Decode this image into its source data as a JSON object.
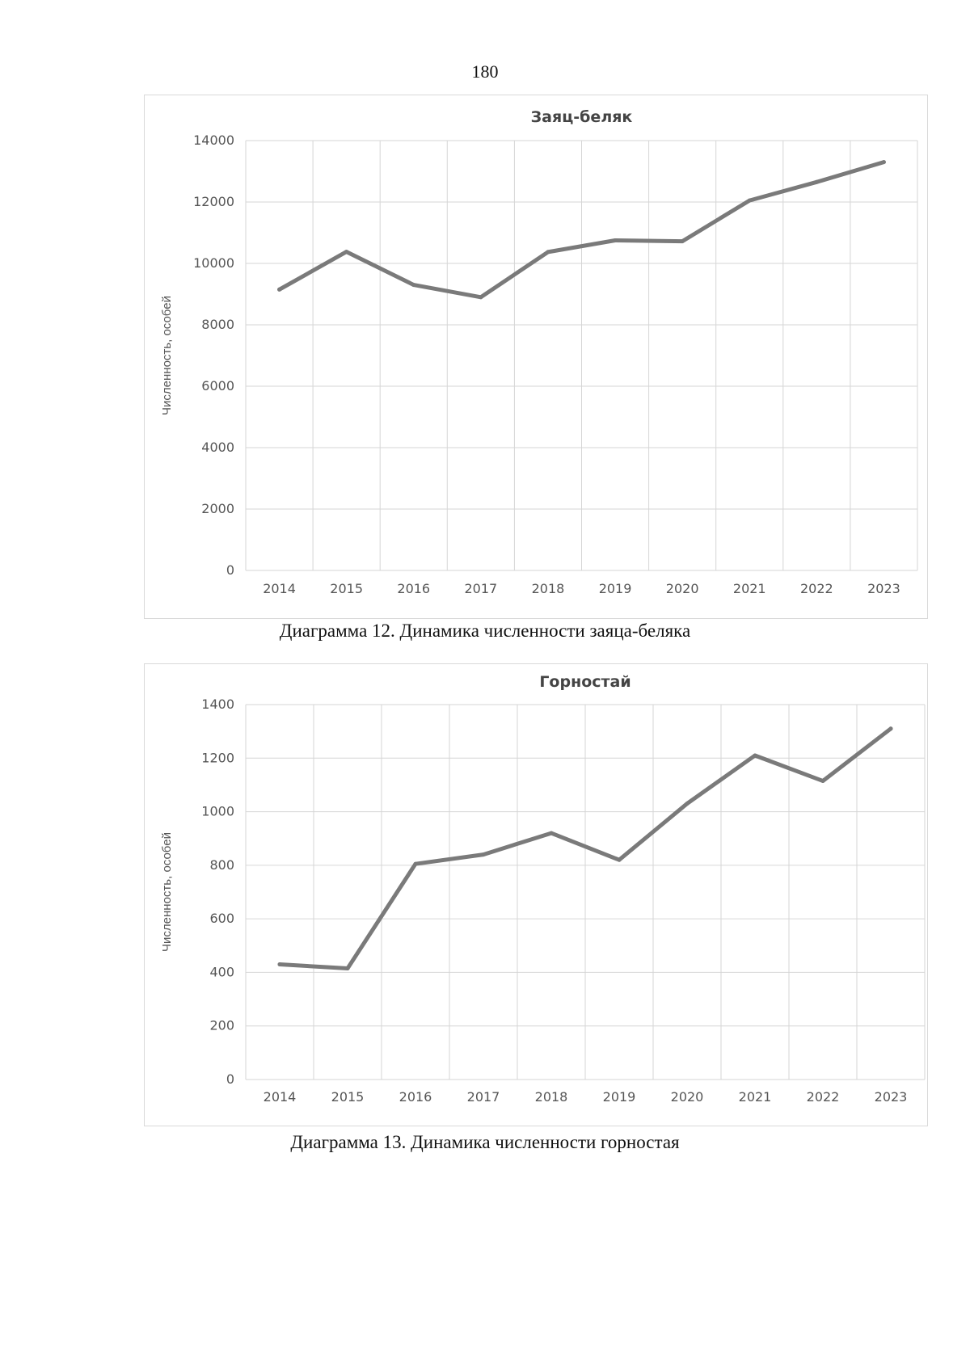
{
  "page": {
    "number": "180"
  },
  "colors": {
    "line": "#7a7a7a",
    "grid": "#d6d6d6",
    "frame": "#d9d9d9"
  },
  "chart_data": [
    {
      "type": "line",
      "title": "Заяц-беляк",
      "xlabel": "",
      "ylabel": "Численность, особей",
      "categories": [
        "2014",
        "2015",
        "2016",
        "2017",
        "2018",
        "2019",
        "2020",
        "2021",
        "2022",
        "2023"
      ],
      "series": [
        {
          "name": "Заяц-беляк",
          "values": [
            9150,
            10380,
            9300,
            8900,
            10370,
            10750,
            10720,
            12050,
            12650,
            13300
          ]
        }
      ],
      "ylim": [
        0,
        14000
      ],
      "yticks": [
        0,
        2000,
        4000,
        6000,
        8000,
        10000,
        12000,
        14000
      ],
      "grid": true,
      "legend": "none",
      "caption": "Диаграмма 12. Динамика численности заяца-беляка"
    },
    {
      "type": "line",
      "title": "Горностай",
      "xlabel": "",
      "ylabel": "Численность, особей",
      "categories": [
        "2014",
        "2015",
        "2016",
        "2017",
        "2018",
        "2019",
        "2020",
        "2021",
        "2022",
        "2023"
      ],
      "series": [
        {
          "name": "Горностай",
          "values": [
            430,
            415,
            805,
            840,
            920,
            820,
            1030,
            1210,
            1115,
            1310
          ]
        }
      ],
      "ylim": [
        0,
        1400
      ],
      "yticks": [
        0,
        200,
        400,
        600,
        800,
        1000,
        1200,
        1400
      ],
      "grid": true,
      "legend": "none",
      "caption": "Диаграмма 13. Динамика численности горностая"
    }
  ]
}
